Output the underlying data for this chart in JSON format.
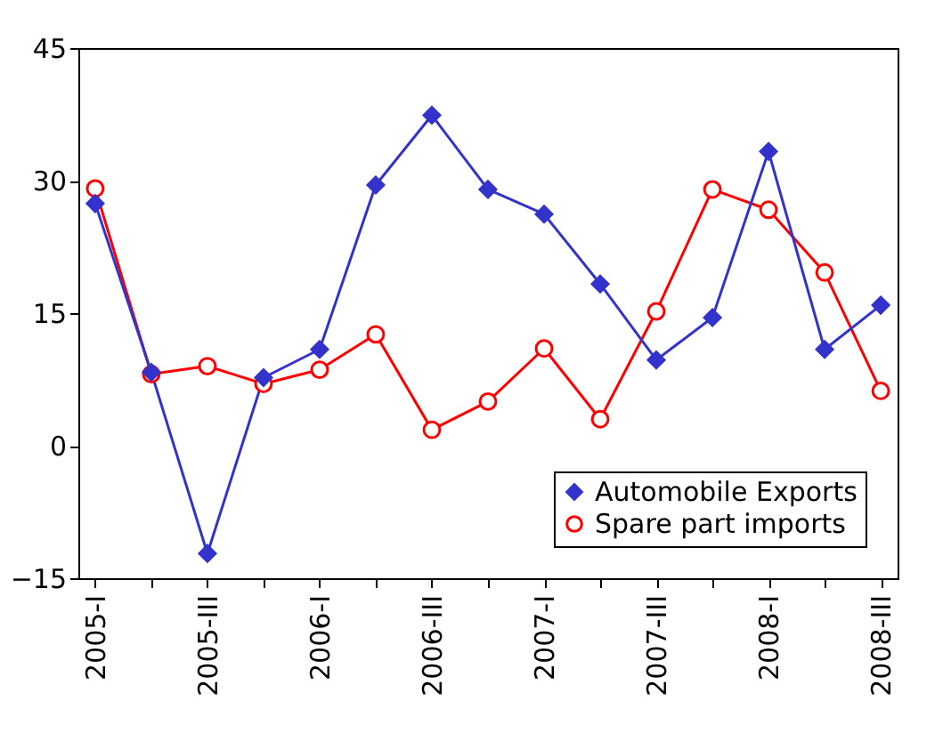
{
  "chart_data": {
    "type": "line",
    "categories": [
      "2005-I",
      null,
      "2005-III",
      null,
      "2006-I",
      null,
      "2006-III",
      null,
      "2007-I",
      null,
      "2007-III",
      null,
      "2008-I",
      null,
      "2008-III"
    ],
    "series": [
      {
        "name": "Automobile Exports",
        "color": "#3333cc",
        "marker": "diamond",
        "values": [
          27.4,
          8.3,
          -12.2,
          7.7,
          10.9,
          29.5,
          37.4,
          29.0,
          26.2,
          18.3,
          9.7,
          14.5,
          33.3,
          10.9,
          15.9
        ]
      },
      {
        "name": "Spare part imports",
        "color": "#ff0000",
        "marker": "circle",
        "values": [
          29.1,
          8.1,
          9.0,
          7.0,
          8.6,
          12.6,
          1.8,
          5.0,
          11.0,
          3.0,
          15.2,
          29.0,
          26.7,
          19.6,
          6.2
        ]
      }
    ],
    "ylim": [
      -15,
      45
    ],
    "yticks": [
      -15,
      0,
      15,
      30,
      45
    ],
    "grid": false,
    "legend": "bottom right"
  }
}
